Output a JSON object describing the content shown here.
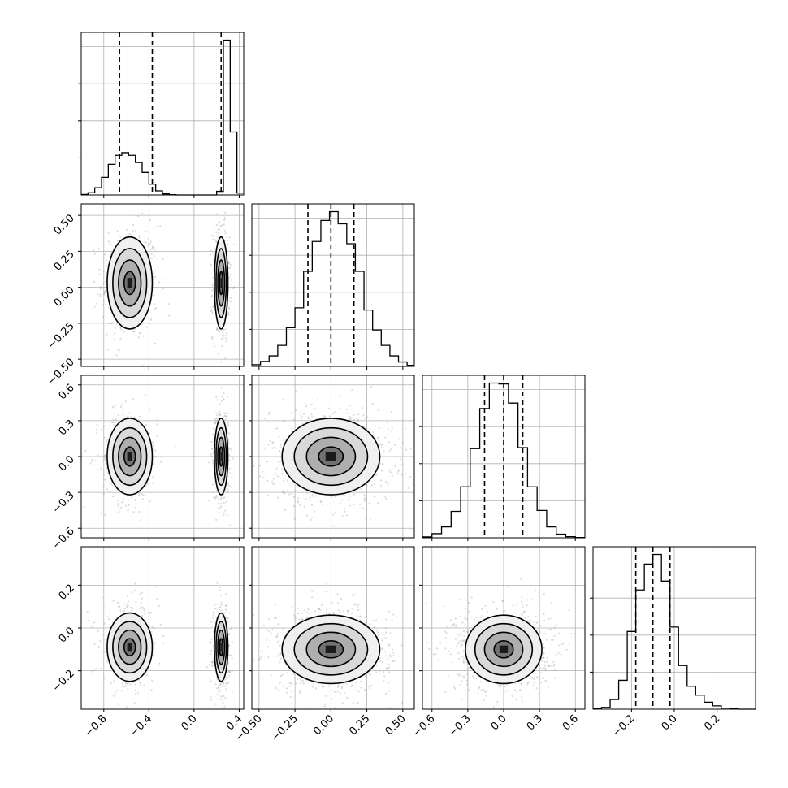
{
  "chart_data": {
    "type": "corner",
    "n_params": 4,
    "grid": true,
    "line_color": "#000000",
    "scatter_color": "#9a9a9a",
    "density_cmap": [
      "#ffffff",
      "#000000"
    ],
    "params": [
      {
        "range": [
          -1.0,
          0.44
        ],
        "ticks": [
          -0.8,
          -0.4,
          0.0,
          0.4
        ],
        "tick_labels": [
          "−0.8",
          "−0.4",
          "0.0",
          "0.4"
        ],
        "quantiles": [
          -0.66,
          -0.37,
          0.24
        ],
        "histogram": {
          "bin_edges": [
            -1.0,
            -0.94,
            -0.88,
            -0.82,
            -0.76,
            -0.7,
            -0.64,
            -0.58,
            -0.52,
            -0.46,
            -0.4,
            -0.34,
            -0.28,
            -0.22,
            -0.16,
            -0.1,
            -0.04,
            0.02,
            0.08,
            0.14,
            0.2,
            0.26,
            0.32,
            0.38,
            0.44
          ],
          "counts": [
            5,
            25,
            80,
            195,
            340,
            440,
            470,
            440,
            360,
            250,
            120,
            45,
            12,
            3,
            0,
            0,
            0,
            0,
            0,
            0,
            40,
            1720,
            700,
            20
          ]
        }
      },
      {
        "range": [
          -0.55,
          0.58
        ],
        "ticks": [
          -0.5,
          -0.25,
          0.0,
          0.25,
          0.5
        ],
        "tick_labels": [
          "−0.50",
          "−0.25",
          "0.00",
          "0.25",
          "0.50"
        ],
        "quantiles": [
          -0.16,
          0.0,
          0.16
        ],
        "histogram": {
          "bin_edges": [
            -0.55,
            -0.49,
            -0.43,
            -0.37,
            -0.31,
            -0.25,
            -0.19,
            -0.13,
            -0.07,
            -0.01,
            0.05,
            0.11,
            0.17,
            0.23,
            0.29,
            0.35,
            0.41,
            0.47,
            0.53,
            0.58
          ],
          "counts": [
            15,
            45,
            95,
            190,
            350,
            530,
            860,
            1130,
            1320,
            1400,
            1290,
            1110,
            860,
            510,
            330,
            190,
            95,
            40,
            10
          ]
        }
      },
      {
        "range": [
          -0.68,
          0.68
        ],
        "ticks": [
          -0.6,
          -0.3,
          0.0,
          0.3,
          0.6
        ],
        "tick_labels": [
          "−0.6",
          "−0.3",
          "0.0",
          "0.3",
          "0.6"
        ],
        "quantiles": [
          -0.16,
          0.0,
          0.16
        ],
        "histogram": {
          "bin_edges": [
            -0.68,
            -0.6,
            -0.52,
            -0.44,
            -0.36,
            -0.28,
            -0.2,
            -0.12,
            -0.04,
            0.04,
            0.12,
            0.2,
            0.28,
            0.36,
            0.44,
            0.52,
            0.6,
            0.68
          ],
          "counts": [
            10,
            45,
            120,
            290,
            560,
            980,
            1420,
            1700,
            1690,
            1480,
            990,
            560,
            300,
            120,
            40,
            12,
            3
          ]
        }
      },
      {
        "range": [
          -0.38,
          0.38
        ],
        "ticks": [
          -0.2,
          0.0,
          0.2
        ],
        "tick_labels": [
          "−0.2",
          "0.0",
          "0.2"
        ],
        "quantiles": [
          -0.18,
          -0.1,
          -0.02
        ],
        "histogram": {
          "bin_edges": [
            -0.38,
            -0.34,
            -0.3,
            -0.26,
            -0.22,
            -0.18,
            -0.14,
            -0.1,
            -0.06,
            -0.02,
            0.02,
            0.06,
            0.1,
            0.14,
            0.18,
            0.22,
            0.26,
            0.3,
            0.34,
            0.38
          ],
          "counts": [
            5,
            25,
            130,
            390,
            1050,
            1610,
            1960,
            2090,
            1730,
            1110,
            590,
            310,
            190,
            95,
            45,
            15,
            5,
            0,
            0
          ]
        }
      }
    ],
    "pairs": [
      {
        "row": 1,
        "col": 0,
        "clusters": [
          {
            "mean": [
              -0.57,
              0.03
            ],
            "sd": [
              0.1,
              0.16
            ],
            "weight": 0.5
          },
          {
            "mean": [
              0.24,
              0.03
            ],
            "sd": [
              0.03,
              0.16
            ],
            "weight": 0.5
          }
        ]
      },
      {
        "row": 2,
        "col": 0,
        "clusters": [
          {
            "mean": [
              -0.57,
              0.0
            ],
            "sd": [
              0.1,
              0.16
            ],
            "weight": 0.5
          },
          {
            "mean": [
              0.24,
              0.0
            ],
            "sd": [
              0.03,
              0.16
            ],
            "weight": 0.5
          }
        ]
      },
      {
        "row": 2,
        "col": 1,
        "clusters": [
          {
            "mean": [
              0.0,
              0.0
            ],
            "sd": [
              0.17,
              0.16
            ],
            "weight": 1.0
          }
        ]
      },
      {
        "row": 3,
        "col": 0,
        "clusters": [
          {
            "mean": [
              -0.57,
              -0.09
            ],
            "sd": [
              0.1,
              0.08
            ],
            "weight": 0.5
          },
          {
            "mean": [
              0.24,
              -0.09
            ],
            "sd": [
              0.03,
              0.08
            ],
            "weight": 0.5
          }
        ]
      },
      {
        "row": 3,
        "col": 1,
        "clusters": [
          {
            "mean": [
              0.0,
              -0.1
            ],
            "sd": [
              0.17,
              0.08
            ],
            "weight": 1.0
          }
        ]
      },
      {
        "row": 3,
        "col": 2,
        "clusters": [
          {
            "mean": [
              0.0,
              -0.1
            ],
            "sd": [
              0.16,
              0.08
            ],
            "weight": 1.0
          }
        ]
      }
    ]
  }
}
